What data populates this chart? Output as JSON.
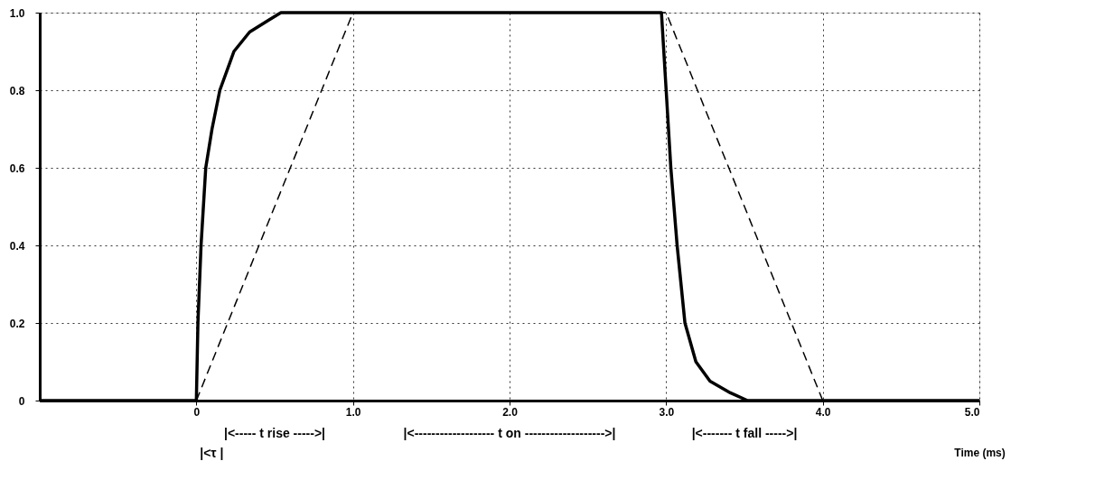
{
  "chart_data": {
    "type": "line",
    "xlabel": "Time (ms)",
    "xlim": [
      -1,
      5
    ],
    "xticks": [
      0,
      {
        "value": 1,
        "label": "1.0"
      },
      {
        "value": 2,
        "label": "2.0"
      },
      {
        "value": 3,
        "label": "3.0"
      },
      {
        "value": 4,
        "label": "4.0"
      },
      {
        "value": 5,
        "label": "5.0"
      }
    ],
    "ylim": [
      0,
      1
    ],
    "yticks": [
      0,
      0.2,
      0.4,
      0.6,
      0.8,
      {
        "value": 1,
        "label": "1.0"
      }
    ],
    "grid": true,
    "marker": "none",
    "series": [
      {
        "color": "#000000",
        "line_style": "solid",
        "x": [
          -1,
          0,
          0.01,
          0.03,
          0.06,
          0.1,
          0.15,
          0.24,
          0.34,
          0.46,
          0.54,
          2.97,
          3.0,
          3.03,
          3.07,
          3.12,
          3.19,
          3.28,
          3.41,
          3.52,
          5
        ],
        "values": [
          0,
          0,
          0.2,
          0.4,
          0.6,
          0.7,
          0.8,
          0.9,
          0.95,
          0.98,
          1,
          1,
          0.8,
          0.6,
          0.4,
          0.2,
          0.1,
          0.05,
          0.02,
          0,
          0
        ]
      },
      {
        "color": "#000000",
        "line_style": "dashed",
        "x": [
          0,
          1,
          3,
          4
        ],
        "values": [
          0,
          1,
          1,
          0
        ]
      }
    ],
    "annotations": [
      "|<----- t rise ----->|",
      "|<------------------- t on ------------------->|",
      "|<------- t fall ----->|",
      "|<τ |"
    ]
  }
}
